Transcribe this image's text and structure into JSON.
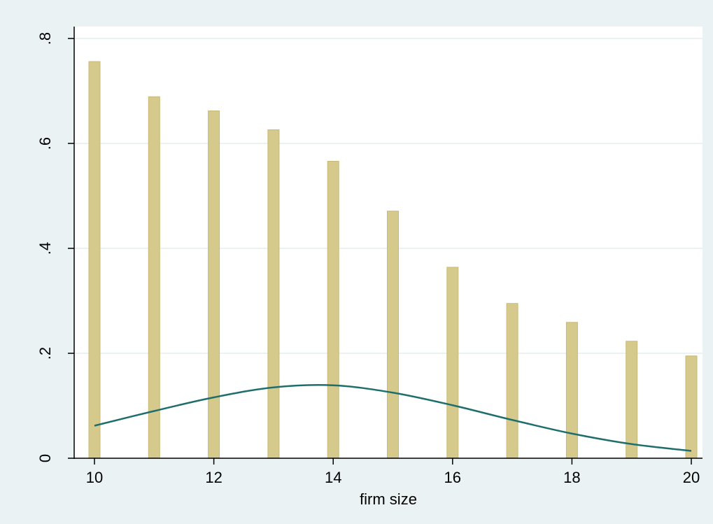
{
  "chart_data": {
    "type": "bar",
    "xlabel": "firm size",
    "ylabel": "",
    "x": [
      10,
      11,
      12,
      13,
      14,
      15,
      16,
      17,
      18,
      19,
      20
    ],
    "xlim": [
      10,
      20
    ],
    "ylim": [
      0,
      0.8
    ],
    "xticks": [
      10,
      12,
      14,
      16,
      18,
      20
    ],
    "xtick_labels": [
      "10",
      "12",
      "14",
      "16",
      "18",
      "20"
    ],
    "yticks": [
      0,
      0.2,
      0.4,
      0.6,
      0.8
    ],
    "ytick_labels": [
      "0",
      ".2",
      ".4",
      ".6",
      ".8"
    ],
    "grid": true,
    "series": [
      {
        "type": "bar",
        "x": [
          10,
          11,
          12,
          13,
          14,
          15,
          16,
          17,
          18,
          19,
          20
        ],
        "values": [
          0.756,
          0.689,
          0.662,
          0.626,
          0.566,
          0.471,
          0.364,
          0.295,
          0.259,
          0.223,
          0.195
        ],
        "color": "#D6C98C"
      },
      {
        "type": "line",
        "x": [
          10,
          11,
          12,
          13,
          14,
          15,
          16,
          17,
          18,
          19,
          20
        ],
        "values": [
          0.062,
          0.09,
          0.116,
          0.135,
          0.139,
          0.125,
          0.101,
          0.073,
          0.047,
          0.027,
          0.014
        ],
        "color": "#1F6E6E"
      }
    ],
    "colors": {
      "background": "#EAF2F3",
      "plot_background": "#FFFFFF",
      "grid": "#EAF2F3",
      "axis": "#000000"
    }
  }
}
